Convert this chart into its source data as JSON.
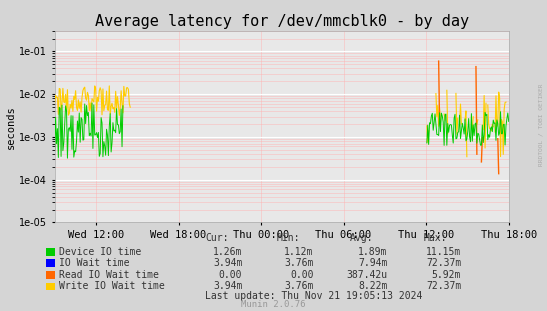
{
  "title": "Average latency for /dev/mmcblk0 - by day",
  "ylabel": "seconds",
  "background_color": "#d5d5d5",
  "plot_background_color": "#e8e8e8",
  "title_fontsize": 11,
  "watermark": "RRDTOOL / TOBI OETIKER",
  "munin_version": "Munin 2.0.76",
  "last_update": "Last update: Thu Nov 21 19:05:13 2024",
  "x_tick_labels": [
    "Wed 12:00",
    "Wed 18:00",
    "Thu 00:00",
    "Thu 06:00",
    "Thu 12:00",
    "Thu 18:00"
  ],
  "ylim_min": 1e-05,
  "ylim_max": 0.3,
  "total_hours": 33.0,
  "tick_hour_offsets": [
    3,
    9,
    15,
    21,
    27,
    33
  ],
  "legend": [
    {
      "label": "Device IO time",
      "color": "#00cc00",
      "cur": "1.26m",
      "min": "1.12m",
      "avg": "1.89m",
      "max": "11.15m"
    },
    {
      "label": "IO Wait time",
      "color": "#0000ff",
      "cur": "3.94m",
      "min": "3.76m",
      "avg": "7.94m",
      "max": "72.37m"
    },
    {
      "label": "Read IO Wait time",
      "color": "#ff6600",
      "cur": "0.00",
      "min": "0.00",
      "avg": "387.42u",
      "max": "5.92m"
    },
    {
      "label": "Write IO Wait time",
      "color": "#ffcc00",
      "cur": "3.94m",
      "min": "3.76m",
      "avg": "8.22m",
      "max": "72.37m"
    }
  ]
}
